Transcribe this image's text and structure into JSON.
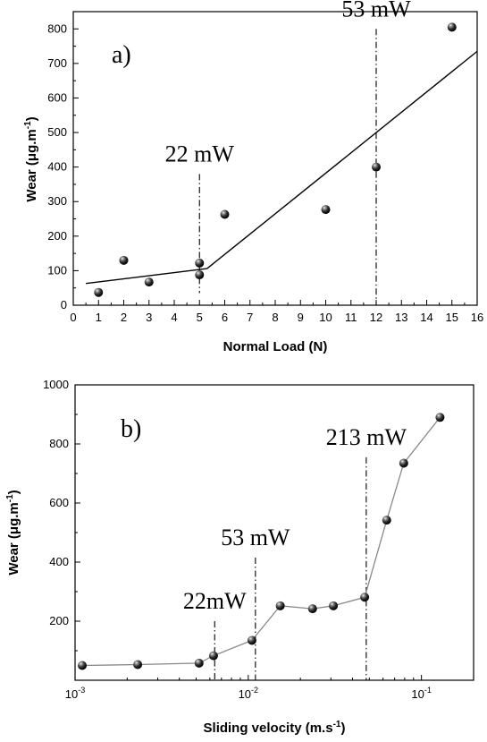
{
  "chart_data": [
    {
      "type": "scatter",
      "panel_label": "a)",
      "xlabel": "Normal Load (N)",
      "ylabel_main": "Wear (μg.m",
      "ylabel_sup": "-1",
      "ylabel_close": ")",
      "xlim": [
        0,
        16
      ],
      "ylim": [
        0,
        850
      ],
      "xticks": [
        0,
        1,
        2,
        3,
        4,
        5,
        6,
        7,
        8,
        9,
        10,
        11,
        12,
        13,
        14,
        15,
        16
      ],
      "yticks": [
        0,
        100,
        200,
        300,
        400,
        500,
        600,
        700,
        800
      ],
      "points": [
        {
          "x": 1,
          "y": 37
        },
        {
          "x": 2,
          "y": 130
        },
        {
          "x": 3,
          "y": 67
        },
        {
          "x": 5,
          "y": 88
        },
        {
          "x": 5,
          "y": 122
        },
        {
          "x": 6,
          "y": 263
        },
        {
          "x": 10,
          "y": 277
        },
        {
          "x": 12,
          "y": 400
        },
        {
          "x": 15,
          "y": 805
        }
      ],
      "fit_lines": [
        [
          {
            "x": 0.5,
            "y": 63
          },
          {
            "x": 5.3,
            "y": 106
          }
        ],
        [
          {
            "x": 5.3,
            "y": 106
          },
          {
            "x": 16,
            "y": 735
          }
        ]
      ],
      "markers": [
        {
          "x": 5,
          "label": "22 mW",
          "y_top": 380,
          "y_bottom": 35
        },
        {
          "x": 12,
          "label": "53 mW",
          "y_top": 800,
          "y_bottom": 0
        }
      ],
      "legend": "none",
      "grid": false
    },
    {
      "type": "line",
      "panel_label": "b)",
      "xlabel_main": "Sliding velocity (m.s",
      "xlabel_sup": "-1",
      "xlabel_close": ")",
      "ylabel_main": "Wear (μg.m",
      "ylabel_sup": "-1",
      "ylabel_close": ")",
      "xscale": "log",
      "xlim": [
        0.001,
        0.2
      ],
      "ylim": [
        0,
        1000
      ],
      "xticks": [
        {
          "value": 0.001,
          "base": "10",
          "exp": "-3"
        },
        {
          "value": 0.01,
          "base": "10",
          "exp": "-2"
        },
        {
          "value": 0.1,
          "base": "10",
          "exp": "-1"
        }
      ],
      "yticks": [
        200,
        400,
        600,
        800,
        1000
      ],
      "points": [
        {
          "x": 0.0011,
          "y": 50
        },
        {
          "x": 0.0023,
          "y": 53
        },
        {
          "x": 0.0052,
          "y": 58
        },
        {
          "x": 0.0063,
          "y": 83
        },
        {
          "x": 0.0105,
          "y": 135
        },
        {
          "x": 0.0153,
          "y": 252
        },
        {
          "x": 0.0235,
          "y": 242
        },
        {
          "x": 0.031,
          "y": 252
        },
        {
          "x": 0.047,
          "y": 281
        },
        {
          "x": 0.063,
          "y": 542
        },
        {
          "x": 0.079,
          "y": 735
        },
        {
          "x": 0.128,
          "y": 890
        }
      ],
      "markers": [
        {
          "x": 0.0064,
          "label": "22mW",
          "y_top": 200,
          "y_bottom": 0
        },
        {
          "x": 0.011,
          "label": "53 mW",
          "y_top": 415,
          "y_bottom": 0
        },
        {
          "x": 0.048,
          "label": "213 mW",
          "y_top": 755,
          "y_bottom": 0
        }
      ],
      "legend": "none",
      "grid": false
    }
  ]
}
